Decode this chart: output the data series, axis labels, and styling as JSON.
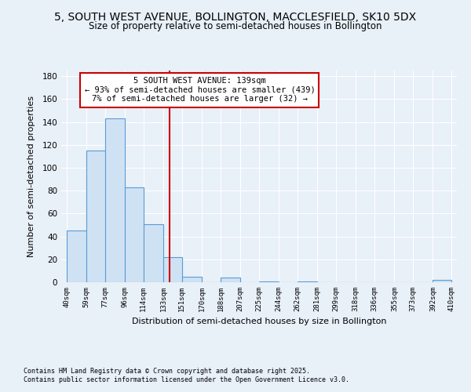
{
  "title1": "5, SOUTH WEST AVENUE, BOLLINGTON, MACCLESFIELD, SK10 5DX",
  "title2": "Size of property relative to semi-detached houses in Bollington",
  "xlabel": "Distribution of semi-detached houses by size in Bollington",
  "ylabel": "Number of semi-detached properties",
  "bar_left_edges": [
    40,
    59,
    77,
    96,
    114,
    133,
    151,
    170,
    188,
    207,
    225,
    244,
    262,
    281,
    299,
    318,
    336,
    355,
    373,
    392
  ],
  "bar_widths": [
    19,
    18,
    19,
    18,
    19,
    18,
    19,
    18,
    19,
    18,
    19,
    18,
    19,
    18,
    18,
    18,
    19,
    18,
    19,
    18
  ],
  "bar_heights": [
    45,
    115,
    143,
    83,
    51,
    22,
    5,
    0,
    4,
    0,
    1,
    0,
    1,
    0,
    0,
    0,
    0,
    0,
    0,
    2
  ],
  "tick_labels": [
    "40sqm",
    "59sqm",
    "77sqm",
    "96sqm",
    "114sqm",
    "133sqm",
    "151sqm",
    "170sqm",
    "188sqm",
    "207sqm",
    "225sqm",
    "244sqm",
    "262sqm",
    "281sqm",
    "299sqm",
    "318sqm",
    "336sqm",
    "355sqm",
    "373sqm",
    "392sqm",
    "410sqm"
  ],
  "tick_positions": [
    40,
    59,
    77,
    96,
    114,
    133,
    151,
    170,
    188,
    207,
    225,
    244,
    262,
    281,
    299,
    318,
    336,
    355,
    373,
    392,
    410
  ],
  "bar_color": "#cfe2f3",
  "bar_edge_color": "#5b9bd5",
  "vline_x": 139,
  "vline_color": "#cc0000",
  "annotation_title": "5 SOUTH WEST AVENUE: 139sqm",
  "annotation_line1": "← 93% of semi-detached houses are smaller (439)",
  "annotation_line2": "7% of semi-detached houses are larger (32) →",
  "annotation_box_color": "#ffffff",
  "annotation_box_edge": "#cc0000",
  "ylim": [
    0,
    185
  ],
  "xlim": [
    35,
    415
  ],
  "bg_color": "#e8f0f8",
  "grid_color": "#ffffff",
  "footnote1": "Contains HM Land Registry data © Crown copyright and database right 2025.",
  "footnote2": "Contains public sector information licensed under the Open Government Licence v3.0.",
  "title1_fontsize": 10,
  "title2_fontsize": 8.5,
  "annotation_fontsize": 7.5,
  "footnote_fontsize": 6
}
